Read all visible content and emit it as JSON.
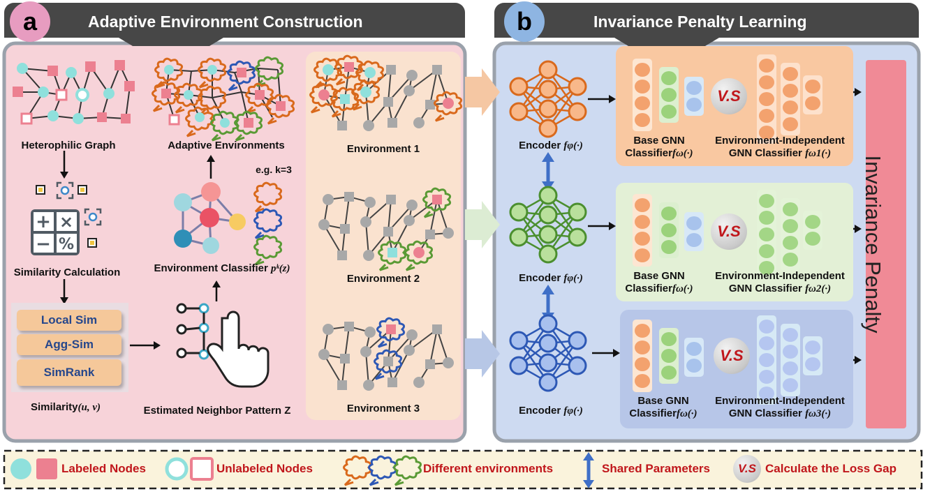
{
  "panel_a": {
    "badge": "a",
    "title": "Adaptive Environment Construction",
    "heterophilic_graph": "Heterophilic Graph",
    "adaptive_environments": "Adaptive Environments",
    "eg_k": "e.g. k=3",
    "similarity_calc": "Similarity Calculation",
    "environment_classifier": "Environment Classifier ",
    "environment_classifier_math": "pᵏ(z)",
    "sim_methods": [
      "Local Sim",
      "Agg-Sim",
      "SimRank"
    ],
    "similarity_label": "Similarity",
    "similarity_args": "(u, v)",
    "estimated_pattern": "Estimated Neighbor Pattern Z",
    "environments": [
      "Environment 1",
      "Environment 2",
      "Environment 3"
    ]
  },
  "panel_b": {
    "badge": "b",
    "title": "Invariance Penalty Learning",
    "encoder_label": "Encoder ",
    "encoder_math": "fφ(·)",
    "base_gnn_line1": "Base GNN",
    "base_gnn_line2": "Classifier",
    "base_gnn_math": "fω(·)",
    "env_indep_line1": "Environment-Independent",
    "env_indep_line2": "GNN Classifier ",
    "env_indep_math": [
      "fω1(·)",
      "fω2(·)",
      "fω3(·)"
    ],
    "vs": "V.S",
    "penalty": "Invariance Penalty"
  },
  "legend": {
    "labeled": "Labeled Nodes",
    "unlabeled": "Unlabeled Nodes",
    "different_envs": "Different environments",
    "shared": "Shared Parameters",
    "vs": "V.S",
    "loss_gap": "Calculate the Loss Gap"
  },
  "colors": {
    "orange_env": "#d9691c",
    "blue_env": "#2d58b5",
    "green_env": "#5a9a35",
    "teal_node": "#8fe0dc",
    "pink_node": "#ec8090",
    "accent_red": "#c0161b"
  }
}
